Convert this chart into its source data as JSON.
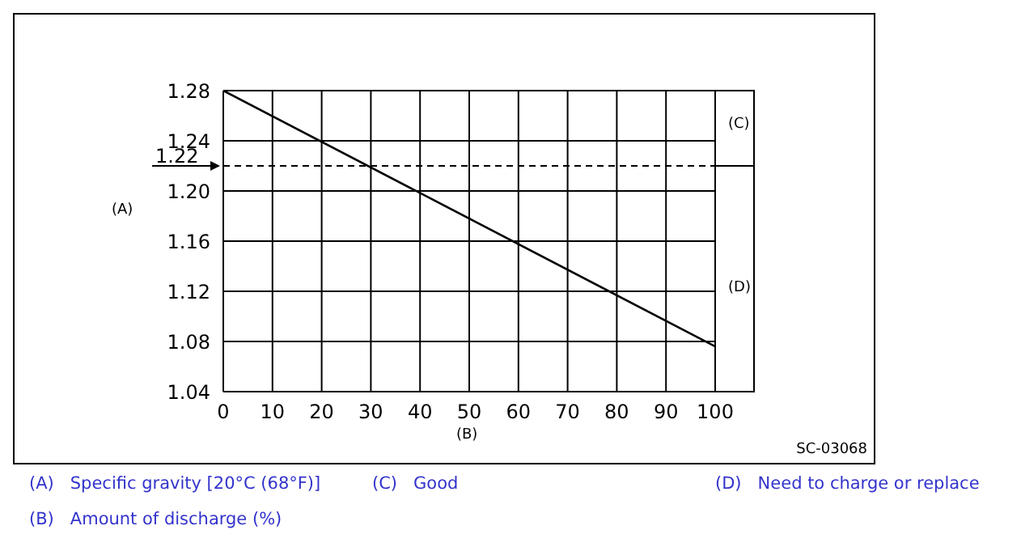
{
  "chart_data": {
    "type": "line",
    "xlabel": "(B)",
    "ylabel": "(A)",
    "x": [
      0,
      100
    ],
    "series": [
      {
        "color": "#000000",
        "values": [
          1.28,
          1.076
        ]
      }
    ],
    "xlim": [
      0,
      100
    ],
    "xticks": [
      0,
      10,
      20,
      30,
      40,
      50,
      60,
      70,
      80,
      90,
      100
    ],
    "ylim": [
      1.04,
      1.28
    ],
    "yticks": [
      1.04,
      1.08,
      1.12,
      1.16,
      {
        "value": 1.2,
        "label": "1.20"
      },
      1.24,
      1.28
    ],
    "ref_lines": [
      {
        "axis": "y",
        "value": 1.22,
        "label": "1.22",
        "color": "#000000",
        "line_style": "dashed"
      }
    ],
    "annotations": [
      "(C)",
      "(D)",
      "SC-03068",
      "(A)   Specific gravity [20°C (68°F)]",
      "(C)   Good",
      "(D)   Need to charge or replace",
      "(B)   Amount of discharge (%)"
    ],
    "grid": true,
    "marker": "none",
    "line_style": "solid"
  }
}
